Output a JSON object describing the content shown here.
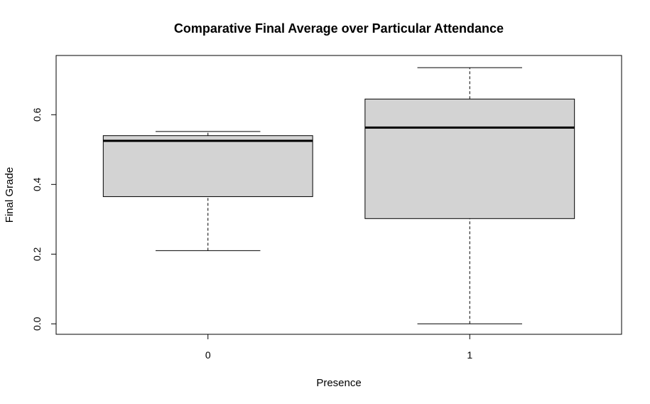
{
  "chart_data": {
    "type": "boxplot",
    "title": "Comparative Final Average over Particular Attendance",
    "xlabel": "Presence",
    "ylabel": "Final Grade",
    "categories": [
      "0",
      "1"
    ],
    "ylim": [
      -0.03,
      0.77
    ],
    "y_ticks": [
      0.0,
      0.2,
      0.4,
      0.6
    ],
    "y_tick_labels": [
      "0.0",
      "0.2",
      "0.4",
      "0.6"
    ],
    "box_color": "#d3d3d3",
    "boxes": [
      {
        "category": "0",
        "whisker_low": 0.21,
        "q1": 0.365,
        "median": 0.525,
        "q3": 0.54,
        "whisker_high": 0.552
      },
      {
        "category": "1",
        "whisker_low": 0.0,
        "q1": 0.302,
        "median": 0.563,
        "q3": 0.645,
        "whisker_high": 0.735
      }
    ]
  }
}
